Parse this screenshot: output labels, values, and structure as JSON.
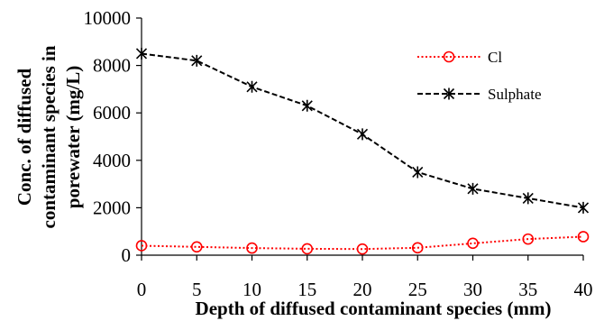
{
  "chart_data": {
    "type": "line",
    "title": "",
    "xlabel": "Depth of diffused contaminant species (mm)",
    "ylabel_lines": [
      "Conc. of diffused",
      "contaminant species in",
      "porewater (mg/L)"
    ],
    "x": [
      0,
      5,
      10,
      15,
      20,
      25,
      30,
      35,
      40
    ],
    "xlim": [
      0,
      40
    ],
    "ylim": [
      0,
      10000
    ],
    "xticks": [
      0,
      5,
      10,
      15,
      20,
      25,
      30,
      35,
      40
    ],
    "yticks": [
      0,
      2000,
      4000,
      6000,
      8000,
      10000
    ],
    "grid": false,
    "legend_position": "top-right",
    "series": [
      {
        "name": "Cl",
        "values": [
          400,
          350,
          300,
          270,
          260,
          310,
          500,
          680,
          780
        ],
        "color": "#ff0000",
        "line_style": "dotted",
        "marker": "circle"
      },
      {
        "name": "Sulphate",
        "values": [
          8500,
          8200,
          7100,
          6300,
          5100,
          3500,
          2800,
          2400,
          2000
        ],
        "color": "#000000",
        "line_style": "dashed",
        "marker": "star"
      }
    ]
  }
}
